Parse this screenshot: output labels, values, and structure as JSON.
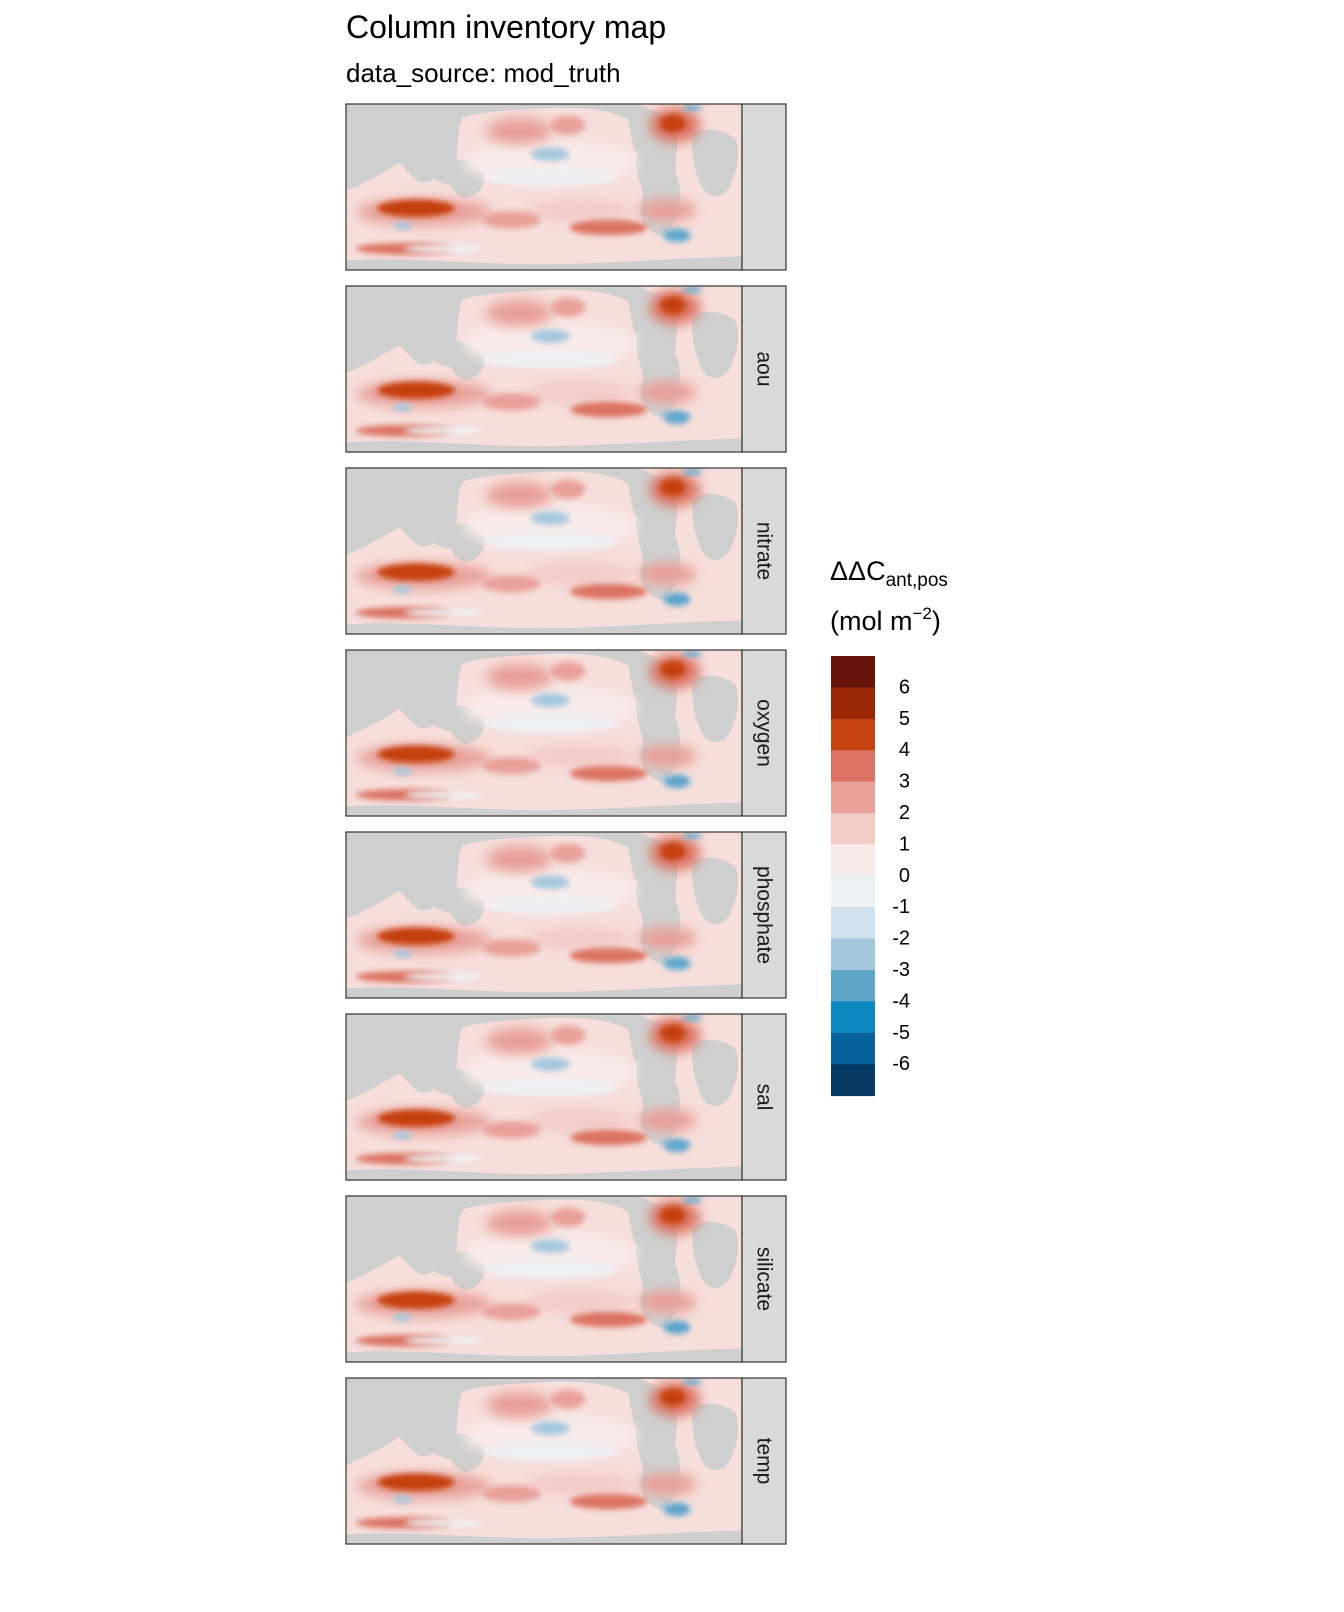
{
  "title": "Column inventory map",
  "subtitle": "data_source: mod_truth",
  "panels": [
    {
      "strip": ""
    },
    {
      "strip": "aou"
    },
    {
      "strip": "nitrate"
    },
    {
      "strip": "oxygen"
    },
    {
      "strip": "phosphate"
    },
    {
      "strip": "sal"
    },
    {
      "strip": "silicate"
    },
    {
      "strip": "temp"
    }
  ],
  "legend": {
    "title_main": "ΔΔC",
    "title_sub": "ant,pos",
    "unit_prefix": "(mol m",
    "unit_exp": "−2",
    "unit_suffix": ")",
    "bins": [
      {
        "color": "#67130b"
      },
      {
        "color": "#9a2608"
      },
      {
        "color": "#c5410f"
      },
      {
        "color": "#dc7362"
      },
      {
        "color": "#e9a19a"
      },
      {
        "color": "#f3cbc7"
      },
      {
        "color": "#f8ebea"
      },
      {
        "color": "#eef1f4"
      },
      {
        "color": "#d2e1ee"
      },
      {
        "color": "#a5c7de"
      },
      {
        "color": "#5ea7cb"
      },
      {
        "color": "#0b89c0"
      },
      {
        "color": "#05629a"
      },
      {
        "color": "#053a64"
      }
    ],
    "labels": [
      "6",
      "5",
      "4",
      "3",
      "2",
      "1",
      "0",
      "-1",
      "-2",
      "-3",
      "-4",
      "-5",
      "-6"
    ]
  },
  "colors": {
    "land": "#cfcfcf",
    "strip_bg": "#d9d9d9",
    "frame": "#333333"
  }
}
